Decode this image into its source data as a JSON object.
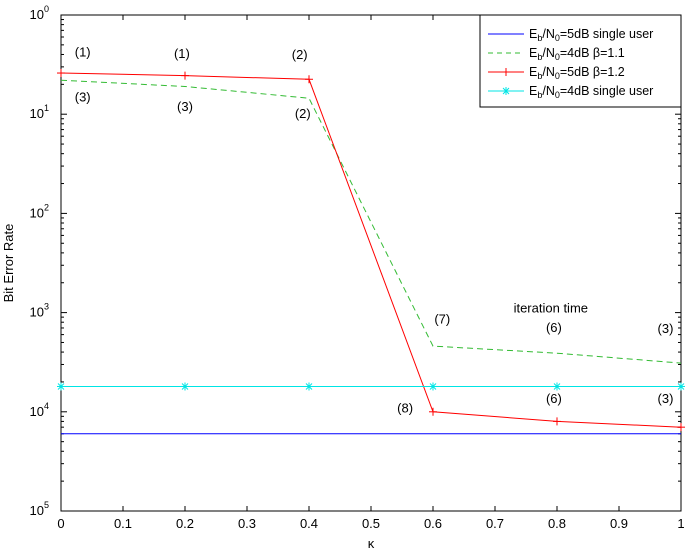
{
  "chart_data": {
    "type": "line",
    "y_scale": "log",
    "xlabel": "κ",
    "ylabel": "Bit Error Rate",
    "xlim": [
      0,
      1
    ],
    "ylim": [
      1e-05,
      1
    ],
    "grid": false,
    "legend_position": "top-right",
    "x_ticks": [
      "0",
      "0.1",
      "0.2",
      "0.3",
      "0.4",
      "0.5",
      "0.6",
      "0.7",
      "0.8",
      "0.9",
      "1"
    ],
    "y_ticks": [
      {
        "base": "10",
        "exp": "0",
        "value": 1
      },
      {
        "base": "10",
        "exp": "1",
        "value": 0.1
      },
      {
        "base": "10",
        "exp": "2",
        "value": 0.01
      },
      {
        "base": "10",
        "exp": "3",
        "value": 0.001
      },
      {
        "base": "10",
        "exp": "4",
        "value": 0.0001
      },
      {
        "base": "10",
        "exp": "5",
        "value": 1e-05
      }
    ],
    "series": [
      {
        "legend": {
          "a": "E",
          "b": "b",
          "c": "/N",
          "d": "0",
          "e": "=5dB single user"
        },
        "color": "#0000ff",
        "style": "solid",
        "marker": "none",
        "x": [
          0,
          1
        ],
        "y": [
          6e-05,
          6e-05
        ]
      },
      {
        "legend": {
          "a": "E",
          "b": "b",
          "c": "/N",
          "d": "0",
          "e": "=4dB β=1.1"
        },
        "color": "#33bb33",
        "style": "dashed",
        "marker": "none",
        "x": [
          0,
          0.2,
          0.4,
          0.6,
          0.8,
          1.0
        ],
        "y": [
          0.22,
          0.19,
          0.145,
          0.00046,
          0.00039,
          0.00031
        ]
      },
      {
        "legend": {
          "a": "E",
          "b": "b",
          "c": "/N",
          "d": "0",
          "e": "=5dB β=1.2"
        },
        "color": "#ff0000",
        "style": "solid",
        "marker": "plus",
        "x": [
          0,
          0.2,
          0.4,
          0.6,
          0.8,
          1.0
        ],
        "y": [
          0.26,
          0.245,
          0.225,
          0.0001,
          8e-05,
          7e-05
        ]
      },
      {
        "legend": {
          "a": "E",
          "b": "b",
          "c": "/N",
          "d": "0",
          "e": "=4dB single user"
        },
        "color": "#00e5e5",
        "style": "solid",
        "marker": "star",
        "x": [
          0,
          0.2,
          0.4,
          0.6,
          0.8,
          1.0
        ],
        "y": [
          0.00018,
          0.00018,
          0.00018,
          0.00018,
          0.00018,
          0.00018
        ]
      }
    ],
    "annotations": [
      {
        "text": "(1)",
        "x": 0.035,
        "y": 0.38
      },
      {
        "text": "(1)",
        "x": 0.195,
        "y": 0.37
      },
      {
        "text": "(2)",
        "x": 0.385,
        "y": 0.36
      },
      {
        "text": "(3)",
        "x": 0.035,
        "y": 0.135
      },
      {
        "text": "(3)",
        "x": 0.2,
        "y": 0.108
      },
      {
        "text": "(2)",
        "x": 0.39,
        "y": 0.092
      },
      {
        "text": "iteration time",
        "x": 0.79,
        "y": 0.001
      },
      {
        "text": "(7)",
        "x": 0.615,
        "y": 0.00078
      },
      {
        "text": "(6)",
        "x": 0.795,
        "y": 0.00064
      },
      {
        "text": "(3)",
        "x": 0.975,
        "y": 0.00062
      },
      {
        "text": "(8)",
        "x": 0.555,
        "y": 9.8e-05
      },
      {
        "text": "(6)",
        "x": 0.795,
        "y": 0.000122
      },
      {
        "text": "(3)",
        "x": 0.975,
        "y": 0.000122
      }
    ]
  }
}
